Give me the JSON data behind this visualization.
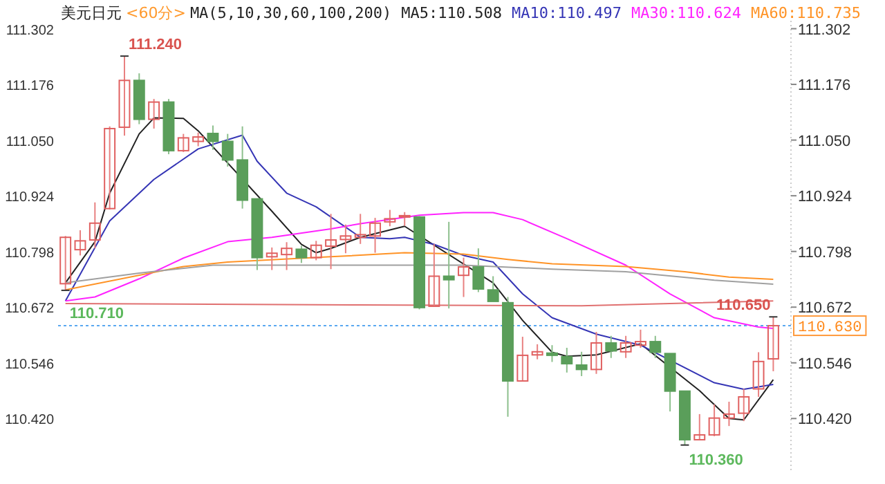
{
  "chart_data": {
    "type": "candlestick",
    "title": "美元日元",
    "subtitle": "<60分>",
    "legend_title": "MA(5,10,30,60,100,200)",
    "categories": [
      null,
      null,
      null,
      null,
      null,
      null,
      null,
      null,
      null,
      null,
      null,
      null,
      null,
      null,
      null,
      null,
      null,
      null,
      null,
      null,
      null,
      null,
      null,
      null,
      null,
      null,
      null,
      null,
      null,
      null,
      null,
      null,
      null,
      null,
      null,
      null,
      null,
      null,
      null,
      null,
      null,
      null,
      null,
      null,
      null,
      null,
      null,
      null,
      null
    ],
    "ohlc": [
      [
        110.725,
        110.833,
        110.71,
        110.83
      ],
      [
        110.802,
        110.846,
        110.789,
        110.822
      ],
      [
        110.824,
        110.909,
        110.805,
        110.862
      ],
      [
        110.895,
        111.081,
        110.893,
        111.076
      ],
      [
        111.079,
        111.24,
        111.06,
        111.185
      ],
      [
        111.185,
        111.201,
        111.086,
        111.097
      ],
      [
        111.097,
        111.143,
        111.076,
        111.136
      ],
      [
        111.136,
        111.143,
        111.018,
        111.026
      ],
      [
        111.026,
        111.064,
        111.023,
        111.055
      ],
      [
        111.047,
        111.067,
        111.036,
        111.057
      ],
      [
        111.065,
        111.083,
        111.028,
        111.047
      ],
      [
        111.047,
        111.064,
        110.99,
        111.005
      ],
      [
        111.005,
        111.081,
        110.895,
        110.914
      ],
      [
        110.917,
        110.917,
        110.756,
        110.784
      ],
      [
        110.786,
        110.807,
        110.756,
        110.794
      ],
      [
        110.791,
        110.819,
        110.756,
        110.805
      ],
      [
        110.803,
        110.811,
        110.772,
        110.784
      ],
      [
        110.784,
        110.822,
        110.778,
        110.812
      ],
      [
        110.81,
        110.883,
        110.758,
        110.824
      ],
      [
        110.825,
        110.859,
        110.794,
        110.833
      ],
      [
        110.83,
        110.883,
        110.815,
        110.836
      ],
      [
        110.833,
        110.874,
        110.795,
        110.862
      ],
      [
        110.865,
        110.892,
        110.855,
        110.872
      ],
      [
        110.877,
        110.887,
        110.856,
        110.879
      ],
      [
        110.876,
        110.878,
        110.667,
        110.671
      ],
      [
        110.674,
        110.815,
        110.674,
        110.742
      ],
      [
        110.742,
        110.865,
        110.669,
        110.734
      ],
      [
        110.744,
        110.784,
        110.695,
        110.763
      ],
      [
        110.763,
        110.805,
        110.706,
        110.713
      ],
      [
        110.711,
        110.742,
        110.685,
        110.685
      ],
      [
        110.682,
        110.695,
        110.424,
        110.505
      ],
      [
        110.505,
        110.605,
        110.505,
        110.563
      ],
      [
        110.564,
        110.588,
        110.554,
        110.571
      ],
      [
        110.568,
        110.586,
        110.548,
        110.563
      ],
      [
        110.56,
        110.58,
        110.524,
        110.544
      ],
      [
        110.541,
        110.571,
        110.516,
        110.531
      ],
      [
        110.531,
        110.616,
        110.521,
        110.591
      ],
      [
        110.591,
        110.607,
        110.557,
        110.573
      ],
      [
        110.571,
        110.607,
        110.557,
        110.591
      ],
      [
        110.586,
        110.621,
        110.58,
        110.594
      ],
      [
        110.594,
        110.607,
        110.557,
        110.57
      ],
      [
        110.567,
        110.567,
        110.436,
        110.482
      ],
      [
        110.482,
        110.482,
        110.36,
        110.372
      ],
      [
        110.372,
        110.43,
        110.372,
        110.383
      ],
      [
        110.383,
        110.452,
        110.38,
        110.421
      ],
      [
        110.421,
        110.458,
        110.403,
        110.43
      ],
      [
        110.432,
        110.487,
        110.414,
        110.469
      ],
      [
        110.487,
        110.57,
        110.469,
        110.549
      ],
      [
        110.555,
        110.65,
        110.527,
        110.63
      ]
    ],
    "series": [
      {
        "type": "line",
        "name": "MA5:110.508",
        "color": "#222222",
        "values": [
          110.727,
          null,
          110.82,
          110.93,
          null,
          111.064,
          111.1,
          null,
          111.099,
          111.071,
          null,
          null,
          null,
          null,
          110.889,
          null,
          110.814,
          110.795,
          110.805,
          null,
          110.83,
          null,
          null,
          110.855,
          null,
          null,
          null,
          null,
          null,
          110.727,
          null,
          110.642,
          null,
          110.57,
          110.561,
          null,
          110.564,
          null,
          null,
          110.589,
          null,
          null,
          null,
          110.483,
          null,
          110.42,
          110.417,
          null,
          110.508
        ]
      },
      {
        "type": "line",
        "name": "MA10:110.497",
        "color": "#3535b5",
        "values": [
          110.686,
          null,
          null,
          110.867,
          null,
          null,
          110.961,
          null,
          null,
          111.03,
          null,
          null,
          111.061,
          111.002,
          null,
          110.93,
          null,
          110.899,
          null,
          null,
          110.83,
          null,
          110.827,
          110.83,
          null,
          110.814,
          null,
          110.789,
          null,
          110.774,
          null,
          110.702,
          null,
          110.648,
          null,
          null,
          110.611,
          null,
          null,
          110.586,
          null,
          null,
          null,
          null,
          110.501,
          null,
          110.486,
          null,
          110.497
        ]
      },
      {
        "type": "line",
        "name": "MA30:110.624",
        "color": "#ff22ff",
        "values": [
          110.686,
          null,
          110.695,
          null,
          null,
          110.736,
          null,
          null,
          110.783,
          null,
          null,
          110.82,
          null,
          null,
          110.83,
          null,
          null,
          null,
          110.849,
          null,
          110.861,
          null,
          null,
          null,
          110.88,
          null,
          null,
          110.886,
          null,
          110.886,
          null,
          110.87,
          null,
          null,
          110.827,
          null,
          null,
          null,
          110.767,
          null,
          null,
          110.702,
          null,
          null,
          110.648,
          null,
          null,
          110.627,
          110.624
        ]
      },
      {
        "type": "line",
        "name": "MA60:110.735",
        "color": "#ff9326",
        "values": [
          110.711,
          null,
          null,
          null,
          null,
          null,
          null,
          null,
          110.764,
          null,
          null,
          110.774,
          null,
          null,
          null,
          null,
          null,
          null,
          110.786,
          null,
          null,
          null,
          null,
          110.795,
          null,
          null,
          null,
          110.792,
          null,
          null,
          110.78,
          null,
          null,
          110.77,
          null,
          null,
          null,
          null,
          110.764,
          null,
          null,
          null,
          110.752,
          null,
          null,
          110.74,
          null,
          null,
          110.735
        ]
      },
      {
        "type": "line",
        "color": "#a0a0a0",
        "values": [
          110.727,
          null,
          null,
          null,
          null,
          110.749,
          null,
          null,
          null,
          null,
          110.767,
          null,
          null,
          null,
          null,
          null,
          null,
          null,
          null,
          null,
          null,
          null,
          null,
          null,
          null,
          null,
          null,
          110.767,
          null,
          null,
          null,
          null,
          null,
          110.758,
          null,
          null,
          null,
          null,
          110.752,
          null,
          null,
          null,
          null,
          null,
          110.733,
          null,
          null,
          null,
          110.724
        ]
      },
      {
        "type": "line",
        "color": "#e07070",
        "values": [
          110.68,
          null,
          null,
          null,
          null,
          null,
          null,
          null,
          null,
          null,
          null,
          null,
          null,
          null,
          null,
          null,
          null,
          null,
          null,
          null,
          110.677,
          null,
          null,
          null,
          null,
          null,
          null,
          null,
          null,
          null,
          null,
          null,
          null,
          null,
          null,
          110.675,
          null,
          null,
          null,
          null,
          null,
          null,
          null,
          null,
          null,
          null,
          null,
          null,
          110.686
        ]
      }
    ],
    "ylim": [
      110.3,
      111.32
    ],
    "yticks": [
      {
        "value": 110.42,
        "label": "110.420"
      },
      110.546,
      110.672,
      110.798,
      110.924,
      {
        "value": 111.05,
        "label": "111.050"
      },
      111.176,
      111.302
    ],
    "y2lim": [
      110.3,
      111.32
    ],
    "y2ticks": [
      {
        "value": 110.42,
        "label": "110.420"
      },
      110.546,
      110.672,
      110.798,
      110.924,
      {
        "value": 111.05,
        "label": "111.050"
      },
      111.176,
      111.302
    ],
    "tick_labels": "y",
    "ref_lines": [
      {
        "axis": "y2",
        "value": 110.63,
        "label": "110.630",
        "color": "#5aa8f0",
        "line_style": "dotted"
      }
    ],
    "annotations": [
      "111.240",
      {
        "text": "110.710",
        "y": 110.71
      },
      "110.360",
      {
        "text": "110.650",
        "y": 110.65
      }
    ]
  }
}
